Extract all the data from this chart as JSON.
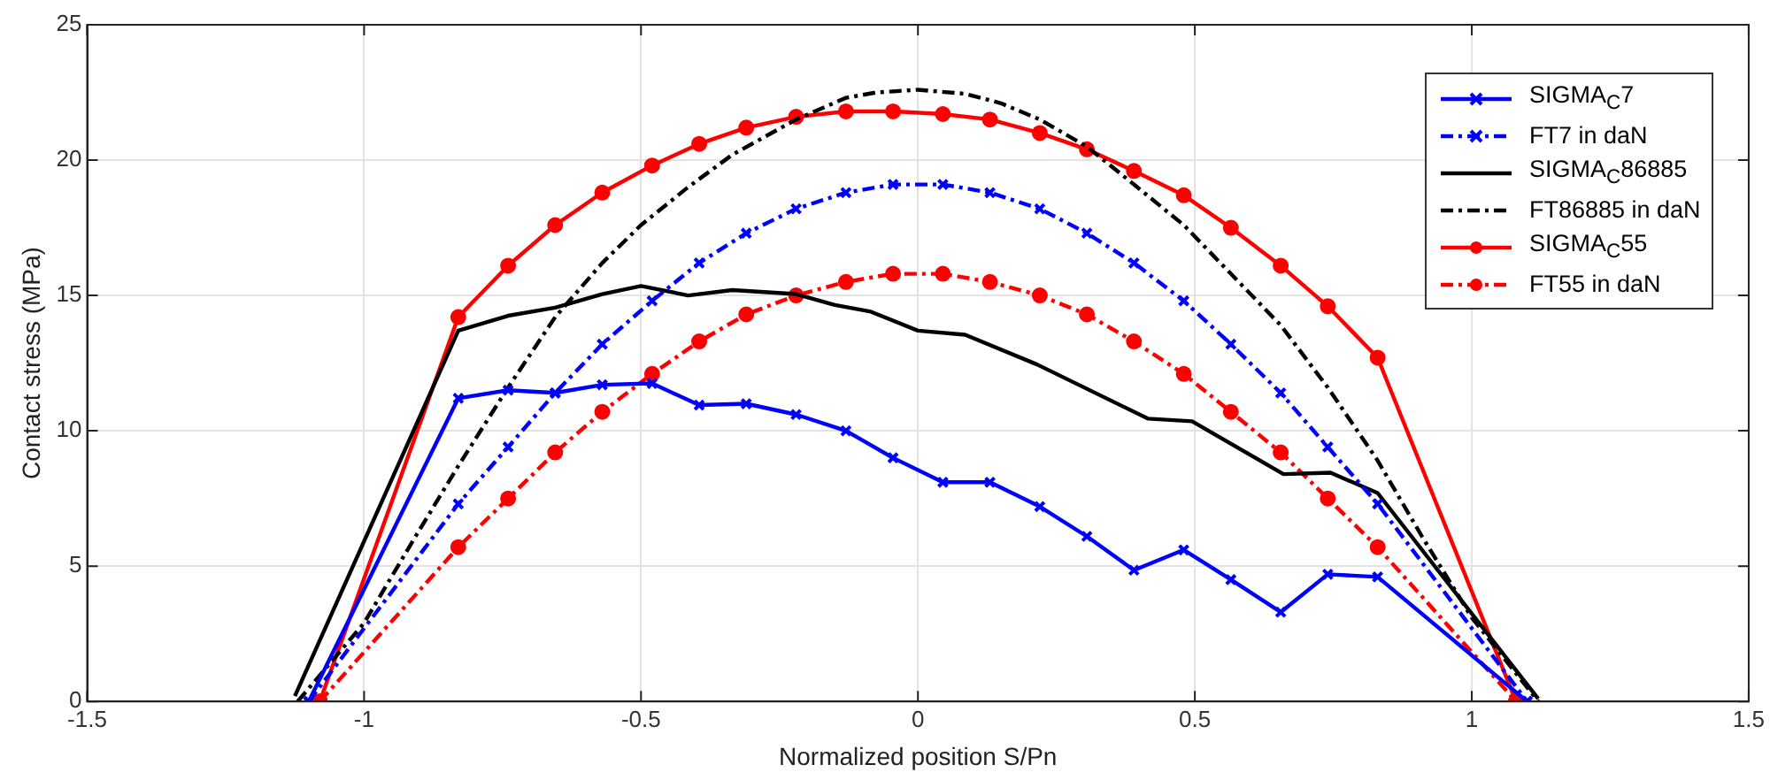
{
  "chart_data": {
    "type": "line",
    "xlabel": "Normalized position S/Pn",
    "ylabel": "Contact stress (MPa)",
    "xlim": [
      -1.5,
      1.5
    ],
    "xticks": [
      -1.5,
      -1,
      -0.5,
      0,
      0.5,
      1,
      1.5
    ],
    "ylim": [
      0,
      25
    ],
    "yticks": [
      0,
      5,
      10,
      15,
      20,
      25
    ],
    "grid": true,
    "legend": "top right",
    "series": [
      {
        "name": "SIGMA$_{C}$7",
        "color": "#0000ff",
        "marker": "cross",
        "line_style": "solid",
        "x": [
          -1.1,
          -0.83,
          -0.74,
          -0.655,
          -0.57,
          -0.48,
          -0.395,
          -0.31,
          -0.22,
          -0.13,
          -0.045,
          0.045,
          0.13,
          0.22,
          0.305,
          0.39,
          0.48,
          0.565,
          0.655,
          0.74,
          0.83,
          1.1
        ],
        "values": [
          0,
          11.2,
          11.5,
          11.4,
          11.7,
          11.75,
          10.95,
          11,
          10.6,
          10,
          9,
          8.1,
          8.1,
          7.2,
          6.1,
          4.85,
          5.6,
          4.5,
          3.3,
          4.7,
          4.6,
          0
        ]
      },
      {
        "name": "FT7 in daN",
        "color": "#0000ff",
        "marker": "cross",
        "line_style": "dashed",
        "x": [
          -1.1,
          -0.83,
          -0.74,
          -0.655,
          -0.57,
          -0.48,
          -0.395,
          -0.31,
          -0.22,
          -0.13,
          -0.045,
          0.045,
          0.13,
          0.22,
          0.305,
          0.39,
          0.48,
          0.565,
          0.655,
          0.74,
          0.83,
          1.1
        ],
        "values": [
          0,
          7.3,
          9.4,
          11.4,
          13.2,
          14.8,
          16.2,
          17.3,
          18.2,
          18.8,
          19.1,
          19.1,
          18.8,
          18.2,
          17.3,
          16.2,
          14.8,
          13.2,
          11.4,
          9.4,
          7.3,
          0
        ]
      },
      {
        "name": "SIGMA$_{C}$86885",
        "color": "#000000",
        "marker": "none",
        "line_style": "solid",
        "x": [
          -1.125,
          -0.83,
          -0.74,
          -0.655,
          -0.57,
          -0.5,
          -0.415,
          -0.335,
          -0.22,
          -0.15,
          -0.085,
          0,
          0.085,
          0.215,
          0.415,
          0.495,
          0.66,
          0.745,
          0.83,
          1.12
        ],
        "values": [
          0.2,
          13.7,
          14.25,
          14.55,
          15.05,
          15.35,
          15,
          15.2,
          15.05,
          14.65,
          14.4,
          13.7,
          13.55,
          12.45,
          10.45,
          10.35,
          8.4,
          8.45,
          7.7,
          0.1
        ]
      },
      {
        "name": "FT86885 in daN",
        "color": "#000000",
        "marker": "none",
        "line_style": "dashed",
        "x": [
          -1.12,
          -1,
          -0.91,
          -0.83,
          -0.74,
          -0.655,
          -0.57,
          -0.5,
          -0.415,
          -0.335,
          -0.22,
          -0.13,
          -0.075,
          0,
          0.085,
          0.15,
          0.22,
          0.305,
          0.39,
          0.48,
          0.565,
          0.655,
          0.74,
          0.83,
          0.91,
          1,
          1.12
        ],
        "values": [
          0,
          2.9,
          6,
          8.7,
          11.6,
          14.2,
          16.2,
          17.6,
          19,
          20.2,
          21.5,
          22.3,
          22.5,
          22.6,
          22.45,
          22.1,
          21.5,
          20.5,
          19.1,
          17.6,
          15.8,
          13.9,
          11.6,
          8.9,
          6.1,
          3.1,
          0
        ]
      },
      {
        "name": "SIGMA$_{C}$55",
        "color": "#ff0000",
        "marker": "circle",
        "line_style": "solid",
        "x": [
          -1.08,
          -0.83,
          -0.74,
          -0.655,
          -0.57,
          -0.48,
          -0.395,
          -0.31,
          -0.22,
          -0.13,
          -0.045,
          0.045,
          0.13,
          0.22,
          0.305,
          0.39,
          0.48,
          0.565,
          0.655,
          0.74,
          0.83,
          1.08
        ],
        "values": [
          0,
          14.2,
          16.1,
          17.6,
          18.8,
          19.8,
          20.6,
          21.2,
          21.6,
          21.8,
          21.8,
          21.7,
          21.5,
          21,
          20.4,
          19.6,
          18.7,
          17.5,
          16.1,
          14.6,
          12.7,
          0
        ]
      },
      {
        "name": "FT55 in daN",
        "color": "#ff0000",
        "marker": "circle",
        "line_style": "dashed",
        "x": [
          -1.08,
          -0.83,
          -0.74,
          -0.655,
          -0.57,
          -0.48,
          -0.395,
          -0.31,
          -0.22,
          -0.13,
          -0.045,
          0.045,
          0.13,
          0.22,
          0.305,
          0.39,
          0.48,
          0.565,
          0.655,
          0.74,
          0.83,
          1.08
        ],
        "values": [
          0,
          5.7,
          7.5,
          9.2,
          10.7,
          12.1,
          13.3,
          14.3,
          15,
          15.5,
          15.8,
          15.8,
          15.5,
          15,
          14.3,
          13.3,
          12.1,
          10.7,
          9.2,
          7.5,
          5.7,
          0
        ]
      }
    ]
  }
}
